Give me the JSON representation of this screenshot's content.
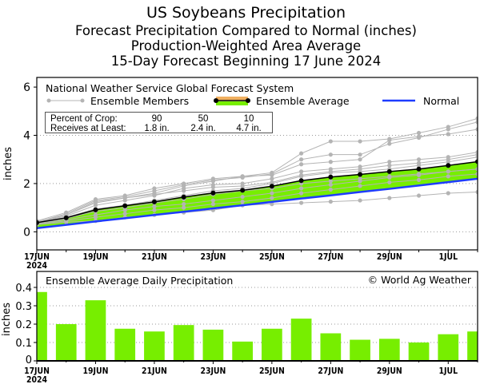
{
  "titles": [
    "US Soybeans Precipitation",
    "Forecast Precipitation Compared to Normal (inches)",
    "Production-Weighted Area Average",
    "15-Day Forecast Beginning 17 June 2024"
  ],
  "colors": {
    "fill": "#77ee00",
    "average": "#000000",
    "normal": "#1e3cff",
    "members": "#b4b4b4",
    "legend_avg_band": "#f0b060"
  },
  "chart_data": [
    {
      "type": "line",
      "source_label": "National Weather Service Global Forecast System",
      "ylabel": "inches",
      "ylim": [
        -0.75,
        6.4
      ],
      "yticks": [
        0,
        2,
        4,
        6
      ],
      "grid": "dotted horizontal",
      "x_tick_labels": [
        "17JUN",
        "19JUN",
        "21JUN",
        "23JUN",
        "25JUN",
        "27JUN",
        "29JUN",
        "1JUL"
      ],
      "x_year_label": "2024",
      "x": [
        "17JUN",
        "18JUN",
        "19JUN",
        "20JUN",
        "21JUN",
        "22JUN",
        "23JUN",
        "24JUN",
        "25JUN",
        "26JUN",
        "27JUN",
        "28JUN",
        "29JUN",
        "30JUN",
        "1JUL",
        "2JUL"
      ],
      "legend": {
        "members": "Ensemble Members",
        "average": "Ensemble Average",
        "normal": "Normal"
      },
      "crop_table": {
        "row1_label": "Percent of Crop:",
        "row2_label": "Receives at Least:",
        "percents": [
          "90",
          "50",
          "10"
        ],
        "amounts": [
          "1.8 in.",
          "2.4 in.",
          "4.7 in."
        ]
      },
      "ensemble_average": [
        0.38,
        0.58,
        0.91,
        1.08,
        1.24,
        1.44,
        1.61,
        1.72,
        1.89,
        2.12,
        2.27,
        2.38,
        2.5,
        2.6,
        2.75,
        2.91
      ],
      "normal": [
        0.15,
        0.29,
        0.43,
        0.56,
        0.7,
        0.83,
        0.97,
        1.1,
        1.24,
        1.38,
        1.51,
        1.65,
        1.78,
        1.92,
        2.06,
        2.2
      ],
      "members": [
        [
          0.45,
          0.8,
          1.35,
          1.5,
          1.8,
          2.0,
          2.2,
          2.3,
          2.45,
          3.25,
          3.75,
          3.75,
          3.85,
          4.1,
          4.35,
          4.7
        ],
        [
          0.4,
          0.75,
          1.3,
          1.45,
          1.7,
          1.95,
          2.15,
          2.25,
          2.4,
          3.0,
          3.2,
          3.2,
          3.65,
          3.9,
          4.25,
          4.55
        ],
        [
          0.4,
          0.7,
          1.2,
          1.4,
          1.6,
          1.9,
          2.1,
          2.3,
          2.35,
          2.8,
          2.9,
          3.0,
          3.8,
          3.95,
          4.05,
          4.25
        ],
        [
          0.42,
          0.7,
          1.25,
          1.4,
          1.55,
          1.7,
          1.85,
          1.9,
          2.05,
          2.35,
          2.5,
          2.6,
          2.75,
          2.85,
          3.0,
          3.2
        ],
        [
          0.4,
          0.65,
          1.1,
          1.3,
          1.5,
          1.8,
          1.95,
          2.0,
          2.2,
          2.5,
          2.6,
          2.7,
          2.9,
          3.0,
          3.1,
          3.3
        ],
        [
          0.38,
          0.6,
          0.95,
          1.1,
          1.3,
          1.5,
          1.7,
          1.8,
          2.0,
          2.3,
          2.45,
          2.5,
          2.6,
          2.75,
          2.9,
          3.1
        ],
        [
          0.35,
          0.55,
          0.85,
          1.0,
          1.2,
          1.35,
          1.55,
          1.7,
          1.8,
          2.0,
          2.1,
          2.2,
          2.3,
          2.4,
          2.5,
          2.6
        ],
        [
          0.35,
          0.5,
          0.7,
          0.9,
          1.05,
          1.15,
          1.3,
          1.45,
          1.6,
          1.8,
          1.95,
          2.1,
          2.25,
          2.35,
          2.5,
          2.6
        ],
        [
          0.32,
          0.45,
          0.6,
          0.75,
          0.9,
          1.0,
          1.15,
          1.25,
          1.4,
          1.6,
          1.75,
          1.9,
          2.05,
          2.15,
          2.3,
          2.4
        ],
        [
          0.3,
          0.4,
          0.45,
          0.6,
          0.7,
          0.8,
          0.9,
          1.1,
          1.15,
          1.2,
          1.25,
          1.3,
          1.4,
          1.5,
          1.6,
          1.65
        ]
      ]
    },
    {
      "type": "bar",
      "title": "Ensemble Average Daily Precipitation",
      "credit": "© World Ag Weather",
      "ylabel": "inches",
      "ylim": [
        0,
        0.487
      ],
      "yticks": [
        "0",
        "0.1",
        "0.2",
        "0.3",
        "0.4"
      ],
      "grid": "dotted horizontal",
      "x_tick_labels": [
        "17JUN",
        "19JUN",
        "21JUN",
        "23JUN",
        "25JUN",
        "27JUN",
        "29JUN",
        "1JUL"
      ],
      "x_year_label": "2024",
      "categories": [
        "17JUN",
        "18JUN",
        "19JUN",
        "20JUN",
        "21JUN",
        "22JUN",
        "23JUN",
        "24JUN",
        "25JUN",
        "26JUN",
        "27JUN",
        "28JUN",
        "29JUN",
        "30JUN",
        "1JUL",
        "2JUL"
      ],
      "values": [
        0.375,
        0.2,
        0.33,
        0.175,
        0.16,
        0.195,
        0.17,
        0.105,
        0.175,
        0.23,
        0.15,
        0.115,
        0.12,
        0.1,
        0.145,
        0.16
      ]
    }
  ]
}
